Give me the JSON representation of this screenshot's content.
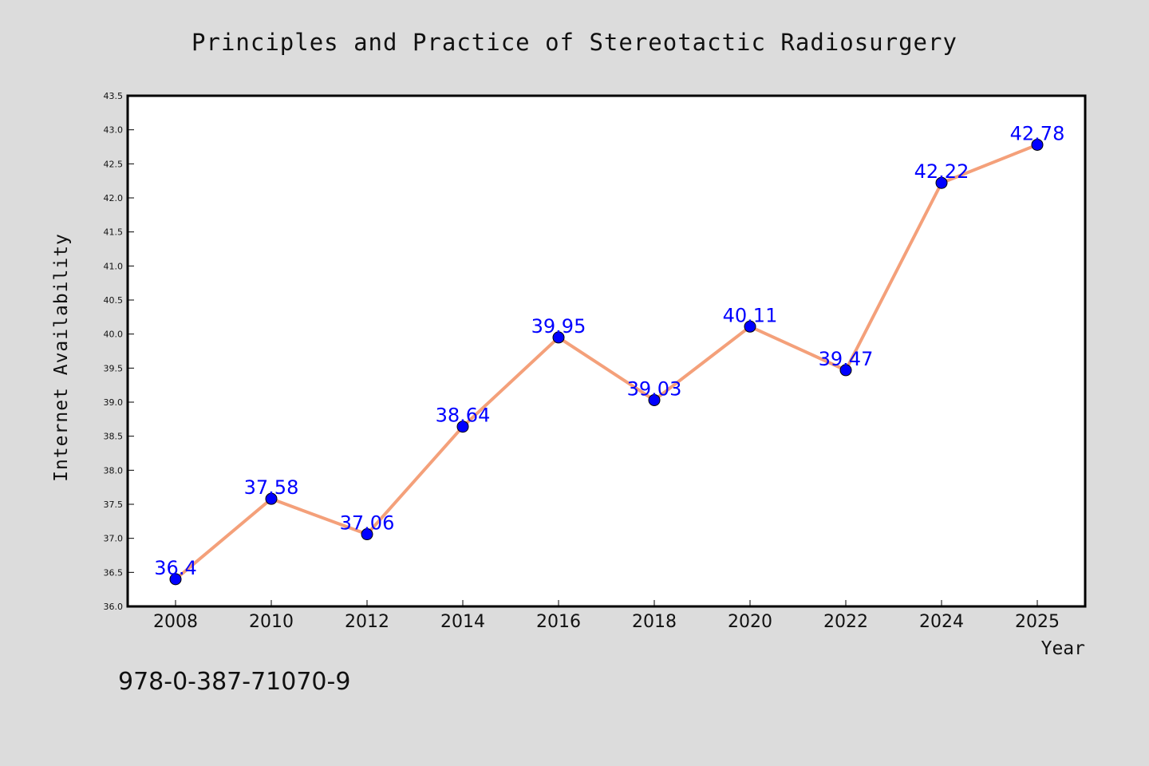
{
  "chart_data": {
    "type": "line",
    "title": "Principles and Practice of Stereotactic Radiosurgery",
    "xlabel": "Year",
    "ylabel": "Internet Availability",
    "categories": [
      "2008",
      "2010",
      "2012",
      "2014",
      "2016",
      "2018",
      "2020",
      "2022",
      "2024",
      "2025"
    ],
    "values": [
      36.4,
      37.58,
      37.06,
      38.64,
      39.95,
      39.03,
      40.11,
      39.47,
      42.22,
      42.78
    ],
    "data_labels": [
      "36.4",
      "37.58",
      "37.06",
      "38.64",
      "39.95",
      "39.03",
      "40.11",
      "39.47",
      "42.22",
      "42.78"
    ],
    "ylim": [
      36.0,
      43.5
    ],
    "yticks": [
      "36.0",
      "36.5",
      "37.0",
      "37.5",
      "38.0",
      "38.5",
      "39.0",
      "39.5",
      "40.0",
      "40.5",
      "41.0",
      "41.5",
      "42.0",
      "42.5",
      "43.0",
      "43.5"
    ],
    "grid": false,
    "line_color": "#f4a07a",
    "marker_color": "#0000ff",
    "label_color": "#0000ff"
  },
  "footer": {
    "isbn": "978-0-387-71070-9"
  }
}
